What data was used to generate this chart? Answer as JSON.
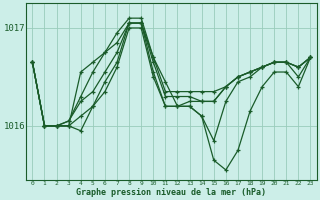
{
  "title": "Graphe pression niveau de la mer (hPa)",
  "bg_color": "#cceee8",
  "grid_color": "#99ccbb",
  "line_color": "#1a5c2a",
  "x_labels": [
    "0",
    "1",
    "2",
    "3",
    "4",
    "5",
    "6",
    "7",
    "8",
    "9",
    "10",
    "11",
    "12",
    "13",
    "14",
    "15",
    "16",
    "17",
    "18",
    "19",
    "20",
    "21",
    "22",
    "23"
  ],
  "yticks": [
    1016,
    1017
  ],
  "ylim": [
    1015.45,
    1017.25
  ],
  "series": [
    [
      1016.65,
      1016.0,
      1016.0,
      1016.0,
      1016.55,
      1016.65,
      1016.75,
      1016.85,
      1017.05,
      1017.05,
      1016.7,
      1016.35,
      1016.35,
      1016.35,
      1016.35,
      1016.35,
      1016.4,
      1016.5,
      1016.55,
      1016.6,
      1016.65,
      1016.65,
      1016.6,
      1016.7
    ],
    [
      1016.65,
      1016.0,
      1016.0,
      1016.0,
      1015.95,
      1016.2,
      1016.45,
      1016.65,
      1017.05,
      1017.05,
      1016.55,
      1016.2,
      1016.2,
      1016.2,
      1016.1,
      1015.65,
      1015.55,
      1015.75,
      1016.15,
      1016.4,
      1016.55,
      1016.55,
      1016.4,
      1016.7
    ],
    [
      1016.65,
      1016.0,
      1016.0,
      1016.05,
      1016.25,
      1016.35,
      1016.55,
      1016.75,
      1017.05,
      1017.05,
      1016.65,
      1016.3,
      1016.3,
      1016.3,
      1016.25,
      1016.25,
      1016.4,
      1016.5,
      1016.55,
      1016.6,
      1016.65,
      1016.65,
      1016.6,
      1016.7
    ],
    [
      1016.65,
      1016.0,
      1016.0,
      1016.0,
      1016.1,
      1016.2,
      1016.35,
      1016.6,
      1017.0,
      1017.0,
      1016.5,
      1016.2,
      1016.2,
      1016.2,
      1016.1,
      1015.85,
      1016.25,
      1016.45,
      1016.5,
      1016.6,
      1016.65,
      1016.65,
      1016.5,
      1016.7
    ]
  ],
  "spike_series": [
    1016.65,
    1016.0,
    1016.0,
    1016.05,
    1016.3,
    1016.55,
    1016.75,
    1016.95,
    1017.1,
    1017.1,
    1016.7,
    1016.45,
    1016.2,
    1016.25,
    1016.25,
    1016.25,
    1016.4,
    1016.5,
    1016.55,
    1016.6,
    1016.65,
    1016.65,
    1016.6,
    1016.7
  ]
}
